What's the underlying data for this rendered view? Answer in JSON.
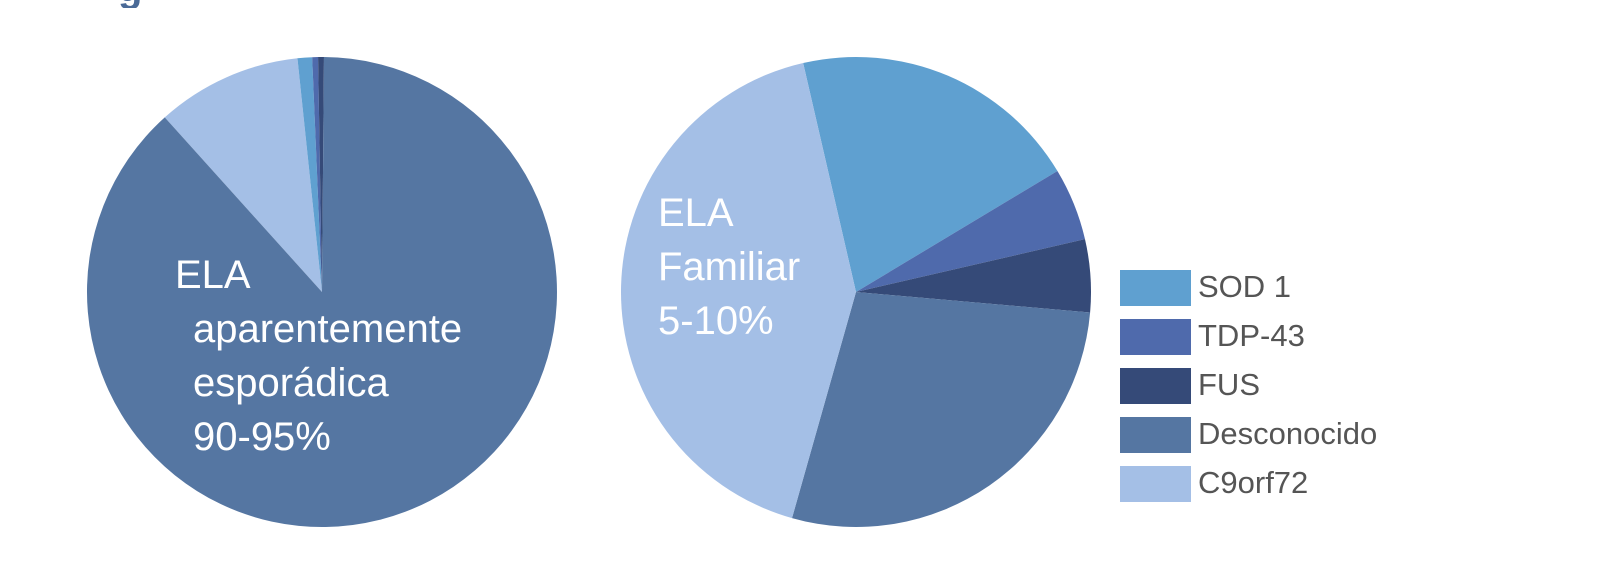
{
  "page": {
    "title_fragment": "g"
  },
  "colors": {
    "sod1": "#5fa0d0",
    "tdp43": "#4f6aac",
    "fus": "#354a78",
    "desconocido": "#5576a2",
    "c9orf72": "#a4bfe6",
    "label_text": "#ffffff",
    "legend_text": "#555555"
  },
  "chart_data": [
    {
      "type": "pie",
      "title": "",
      "label_lines": [
        "ELA",
        "aparentemente",
        "esporádica",
        "90-95%"
      ],
      "slices": [
        {
          "name": "C9orf72",
          "value": 10,
          "color": "#a4bfe6"
        },
        {
          "name": "SOD 1",
          "value": 1.0,
          "color": "#5fa0d0"
        },
        {
          "name": "TDP-43",
          "value": 0.4,
          "color": "#4f6aac"
        },
        {
          "name": "FUS",
          "value": 0.4,
          "color": "#354a78"
        },
        {
          "name": "Desconocido",
          "value": 88.2,
          "color": "#5576a2"
        }
      ],
      "start_angle_deg": 318
    },
    {
      "type": "pie",
      "title": "",
      "label_lines": [
        "ELA",
        "Familiar",
        "5-10%"
      ],
      "slices": [
        {
          "name": "SOD 1",
          "value": 20,
          "color": "#5fa0d0"
        },
        {
          "name": "TDP-43",
          "value": 5,
          "color": "#4f6aac"
        },
        {
          "name": "FUS",
          "value": 5,
          "color": "#354a78"
        },
        {
          "name": "Desconocido",
          "value": 28,
          "color": "#5576a2"
        },
        {
          "name": "C9orf72",
          "value": 42,
          "color": "#a4bfe6"
        }
      ],
      "start_angle_deg": 347
    }
  ],
  "legend": {
    "position": "right",
    "items": [
      {
        "name": "SOD 1",
        "color": "#5fa0d0"
      },
      {
        "name": "TDP-43",
        "color": "#4f6aac"
      },
      {
        "name": "FUS",
        "color": "#354a78"
      },
      {
        "name": "Desconocido",
        "color": "#5576a2"
      },
      {
        "name": "C9orf72",
        "color": "#a4bfe6"
      }
    ]
  }
}
